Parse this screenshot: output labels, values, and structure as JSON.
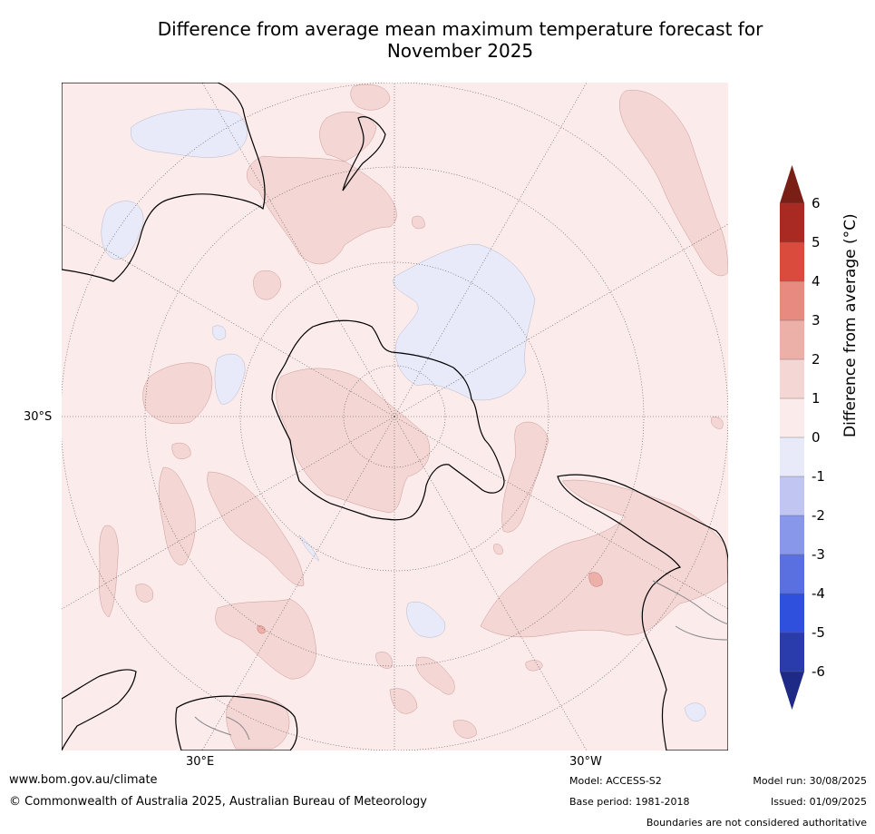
{
  "title_line1": "Difference from average mean maximum temperature forecast for",
  "title_line2": "November 2025",
  "map": {
    "projection": "south-polar-stereographic",
    "lat_label": "30°S",
    "lon_labels": [
      "30°E",
      "30°W"
    ]
  },
  "colorbar": {
    "title": "Difference from average (°C)",
    "ticks": [
      "6",
      "5",
      "4",
      "3",
      "2",
      "1",
      "0",
      "-1",
      "-2",
      "-3",
      "-4",
      "-5",
      "-6"
    ],
    "colors": {
      "above6": "#7a1f16",
      "5to6": "#a82a22",
      "4to5": "#da4b3e",
      "3to4": "#e88a7f",
      "2to3": "#edb0a9",
      "1to2": "#f4d6d4",
      "0to1": "#fbebea",
      "m1to0": "#e8eafa",
      "m2tom1": "#c0c6f1",
      "m3tom2": "#8897ea",
      "m4tom3": "#5a70e0",
      "m5tom4": "#2f4fdd",
      "m6tom5": "#2a3cab",
      "belowm6": "#1e2a86"
    }
  },
  "footer": {
    "url": "www.bom.gov.au/climate",
    "copyright": "© Commonwealth of Australia 2025, Australian Bureau of Meteorology",
    "model": "Model: ACCESS-S2",
    "base_period": "Base period: 1981-2018",
    "model_run": "Model run: 30/08/2025",
    "issued": "Issued: 01/09/2025",
    "disclaimer": "Boundaries are not considered authoritative"
  }
}
